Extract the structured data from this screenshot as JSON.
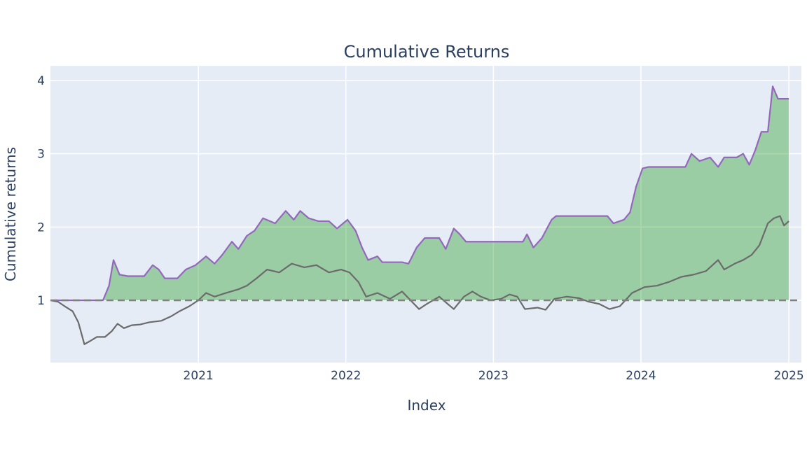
{
  "chart_data": {
    "type": "line",
    "title": "Cumulative Returns",
    "xlabel": "Index",
    "ylabel": "Cumulative returns",
    "x_range": [
      "2020-01-01",
      "2025-02-01"
    ],
    "ylim": [
      0.15,
      4.2
    ],
    "x_ticks": [
      "2021",
      "2022",
      "2023",
      "2024",
      "2025"
    ],
    "y_ticks": [
      1,
      2,
      3,
      4
    ],
    "grid": true,
    "plot_background": "#e5ecf6",
    "benchmark_line": {
      "y": 1,
      "style": "dashed",
      "color": "#7f7f7f"
    },
    "fill_between_series": {
      "upper": 0,
      "baseline": 1,
      "color": "#2ca02c",
      "opacity": 0.4
    },
    "series": [
      {
        "color": "#9467bd",
        "points": [
          [
            "2020-01-01",
            1.0
          ],
          [
            "2020-05-10",
            1.0
          ],
          [
            "2020-05-25",
            1.2
          ],
          [
            "2020-06-05",
            1.55
          ],
          [
            "2020-06-20",
            1.35
          ],
          [
            "2020-07-10",
            1.33
          ],
          [
            "2020-08-20",
            1.33
          ],
          [
            "2020-09-10",
            1.48
          ],
          [
            "2020-09-25",
            1.42
          ],
          [
            "2020-10-10",
            1.3
          ],
          [
            "2020-11-10",
            1.3
          ],
          [
            "2020-12-01",
            1.42
          ],
          [
            "2020-12-25",
            1.48
          ],
          [
            "2021-01-20",
            1.6
          ],
          [
            "2021-02-10",
            1.5
          ],
          [
            "2021-03-01",
            1.62
          ],
          [
            "2021-03-25",
            1.8
          ],
          [
            "2021-04-10",
            1.7
          ],
          [
            "2021-05-01",
            1.88
          ],
          [
            "2021-05-20",
            1.95
          ],
          [
            "2021-06-10",
            2.12
          ],
          [
            "2021-07-10",
            2.05
          ],
          [
            "2021-08-05",
            2.22
          ],
          [
            "2021-08-25",
            2.1
          ],
          [
            "2021-09-10",
            2.22
          ],
          [
            "2021-10-01",
            2.12
          ],
          [
            "2021-10-25",
            2.08
          ],
          [
            "2021-11-20",
            2.08
          ],
          [
            "2021-12-10",
            1.98
          ],
          [
            "2022-01-05",
            2.1
          ],
          [
            "2022-01-25",
            1.95
          ],
          [
            "2022-02-10",
            1.72
          ],
          [
            "2022-02-25",
            1.55
          ],
          [
            "2022-03-20",
            1.6
          ],
          [
            "2022-04-01",
            1.52
          ],
          [
            "2022-05-20",
            1.52
          ],
          [
            "2022-06-05",
            1.5
          ],
          [
            "2022-06-25",
            1.72
          ],
          [
            "2022-07-15",
            1.85
          ],
          [
            "2022-08-20",
            1.85
          ],
          [
            "2022-09-05",
            1.7
          ],
          [
            "2022-09-25",
            1.98
          ],
          [
            "2022-10-10",
            1.9
          ],
          [
            "2022-10-25",
            1.8
          ],
          [
            "2023-03-15",
            1.8
          ],
          [
            "2023-03-25",
            1.9
          ],
          [
            "2023-04-10",
            1.72
          ],
          [
            "2023-05-01",
            1.85
          ],
          [
            "2023-05-25",
            2.1
          ],
          [
            "2023-06-05",
            2.15
          ],
          [
            "2023-10-10",
            2.15
          ],
          [
            "2023-10-25",
            2.05
          ],
          [
            "2023-11-20",
            2.1
          ],
          [
            "2023-12-05",
            2.2
          ],
          [
            "2023-12-20",
            2.55
          ],
          [
            "2024-01-05",
            2.8
          ],
          [
            "2024-01-20",
            2.82
          ],
          [
            "2024-04-20",
            2.82
          ],
          [
            "2024-05-05",
            3.0
          ],
          [
            "2024-05-25",
            2.9
          ],
          [
            "2024-06-20",
            2.95
          ],
          [
            "2024-07-10",
            2.82
          ],
          [
            "2024-07-25",
            2.95
          ],
          [
            "2024-08-25",
            2.95
          ],
          [
            "2024-09-10",
            3.0
          ],
          [
            "2024-09-25",
            2.85
          ],
          [
            "2024-10-10",
            3.05
          ],
          [
            "2024-10-25",
            3.3
          ],
          [
            "2024-11-10",
            3.3
          ],
          [
            "2024-11-22",
            3.92
          ],
          [
            "2024-12-05",
            3.75
          ],
          [
            "2025-01-01",
            3.75
          ]
        ]
      },
      {
        "color": "#6b6b6b",
        "points": [
          [
            "2020-01-01",
            1.0
          ],
          [
            "2020-01-20",
            0.98
          ],
          [
            "2020-02-05",
            0.92
          ],
          [
            "2020-02-25",
            0.85
          ],
          [
            "2020-03-10",
            0.7
          ],
          [
            "2020-03-25",
            0.4
          ],
          [
            "2020-04-10",
            0.45
          ],
          [
            "2020-04-25",
            0.5
          ],
          [
            "2020-05-15",
            0.5
          ],
          [
            "2020-06-01",
            0.58
          ],
          [
            "2020-06-15",
            0.68
          ],
          [
            "2020-07-01",
            0.62
          ],
          [
            "2020-07-20",
            0.66
          ],
          [
            "2020-08-10",
            0.67
          ],
          [
            "2020-09-01",
            0.7
          ],
          [
            "2020-10-01",
            0.72
          ],
          [
            "2020-10-25",
            0.78
          ],
          [
            "2020-11-15",
            0.85
          ],
          [
            "2020-12-10",
            0.92
          ],
          [
            "2021-01-01",
            1.0
          ],
          [
            "2021-01-20",
            1.1
          ],
          [
            "2021-02-10",
            1.05
          ],
          [
            "2021-03-10",
            1.1
          ],
          [
            "2021-04-10",
            1.15
          ],
          [
            "2021-05-01",
            1.2
          ],
          [
            "2021-05-25",
            1.3
          ],
          [
            "2021-06-20",
            1.42
          ],
          [
            "2021-07-20",
            1.38
          ],
          [
            "2021-08-20",
            1.5
          ],
          [
            "2021-09-20",
            1.45
          ],
          [
            "2021-10-20",
            1.48
          ],
          [
            "2021-11-20",
            1.38
          ],
          [
            "2021-12-20",
            1.42
          ],
          [
            "2022-01-10",
            1.38
          ],
          [
            "2022-02-01",
            1.25
          ],
          [
            "2022-02-20",
            1.05
          ],
          [
            "2022-03-20",
            1.1
          ],
          [
            "2022-04-20",
            1.02
          ],
          [
            "2022-05-20",
            1.12
          ],
          [
            "2022-06-10",
            1.0
          ],
          [
            "2022-07-01",
            0.88
          ],
          [
            "2022-07-20",
            0.95
          ],
          [
            "2022-08-20",
            1.05
          ],
          [
            "2022-09-10",
            0.95
          ],
          [
            "2022-09-25",
            0.88
          ],
          [
            "2022-10-20",
            1.05
          ],
          [
            "2022-11-10",
            1.12
          ],
          [
            "2022-12-01",
            1.05
          ],
          [
            "2022-12-25",
            1.0
          ],
          [
            "2023-01-20",
            1.02
          ],
          [
            "2023-02-10",
            1.08
          ],
          [
            "2023-03-01",
            1.05
          ],
          [
            "2023-03-20",
            0.88
          ],
          [
            "2023-04-20",
            0.9
          ],
          [
            "2023-05-10",
            0.87
          ],
          [
            "2023-06-01",
            1.02
          ],
          [
            "2023-07-01",
            1.05
          ],
          [
            "2023-08-01",
            1.03
          ],
          [
            "2023-08-25",
            0.98
          ],
          [
            "2023-09-20",
            0.95
          ],
          [
            "2023-10-15",
            0.88
          ],
          [
            "2023-11-10",
            0.92
          ],
          [
            "2023-12-10",
            1.1
          ],
          [
            "2024-01-10",
            1.18
          ],
          [
            "2024-02-10",
            1.2
          ],
          [
            "2024-03-10",
            1.25
          ],
          [
            "2024-04-10",
            1.32
          ],
          [
            "2024-05-10",
            1.35
          ],
          [
            "2024-06-10",
            1.4
          ],
          [
            "2024-07-10",
            1.55
          ],
          [
            "2024-07-25",
            1.42
          ],
          [
            "2024-08-20",
            1.5
          ],
          [
            "2024-09-10",
            1.55
          ],
          [
            "2024-10-01",
            1.62
          ],
          [
            "2024-10-20",
            1.75
          ],
          [
            "2024-11-10",
            2.05
          ],
          [
            "2024-11-25",
            2.12
          ],
          [
            "2024-12-10",
            2.15
          ],
          [
            "2024-12-20",
            2.02
          ],
          [
            "2025-01-01",
            2.08
          ]
        ]
      }
    ]
  }
}
